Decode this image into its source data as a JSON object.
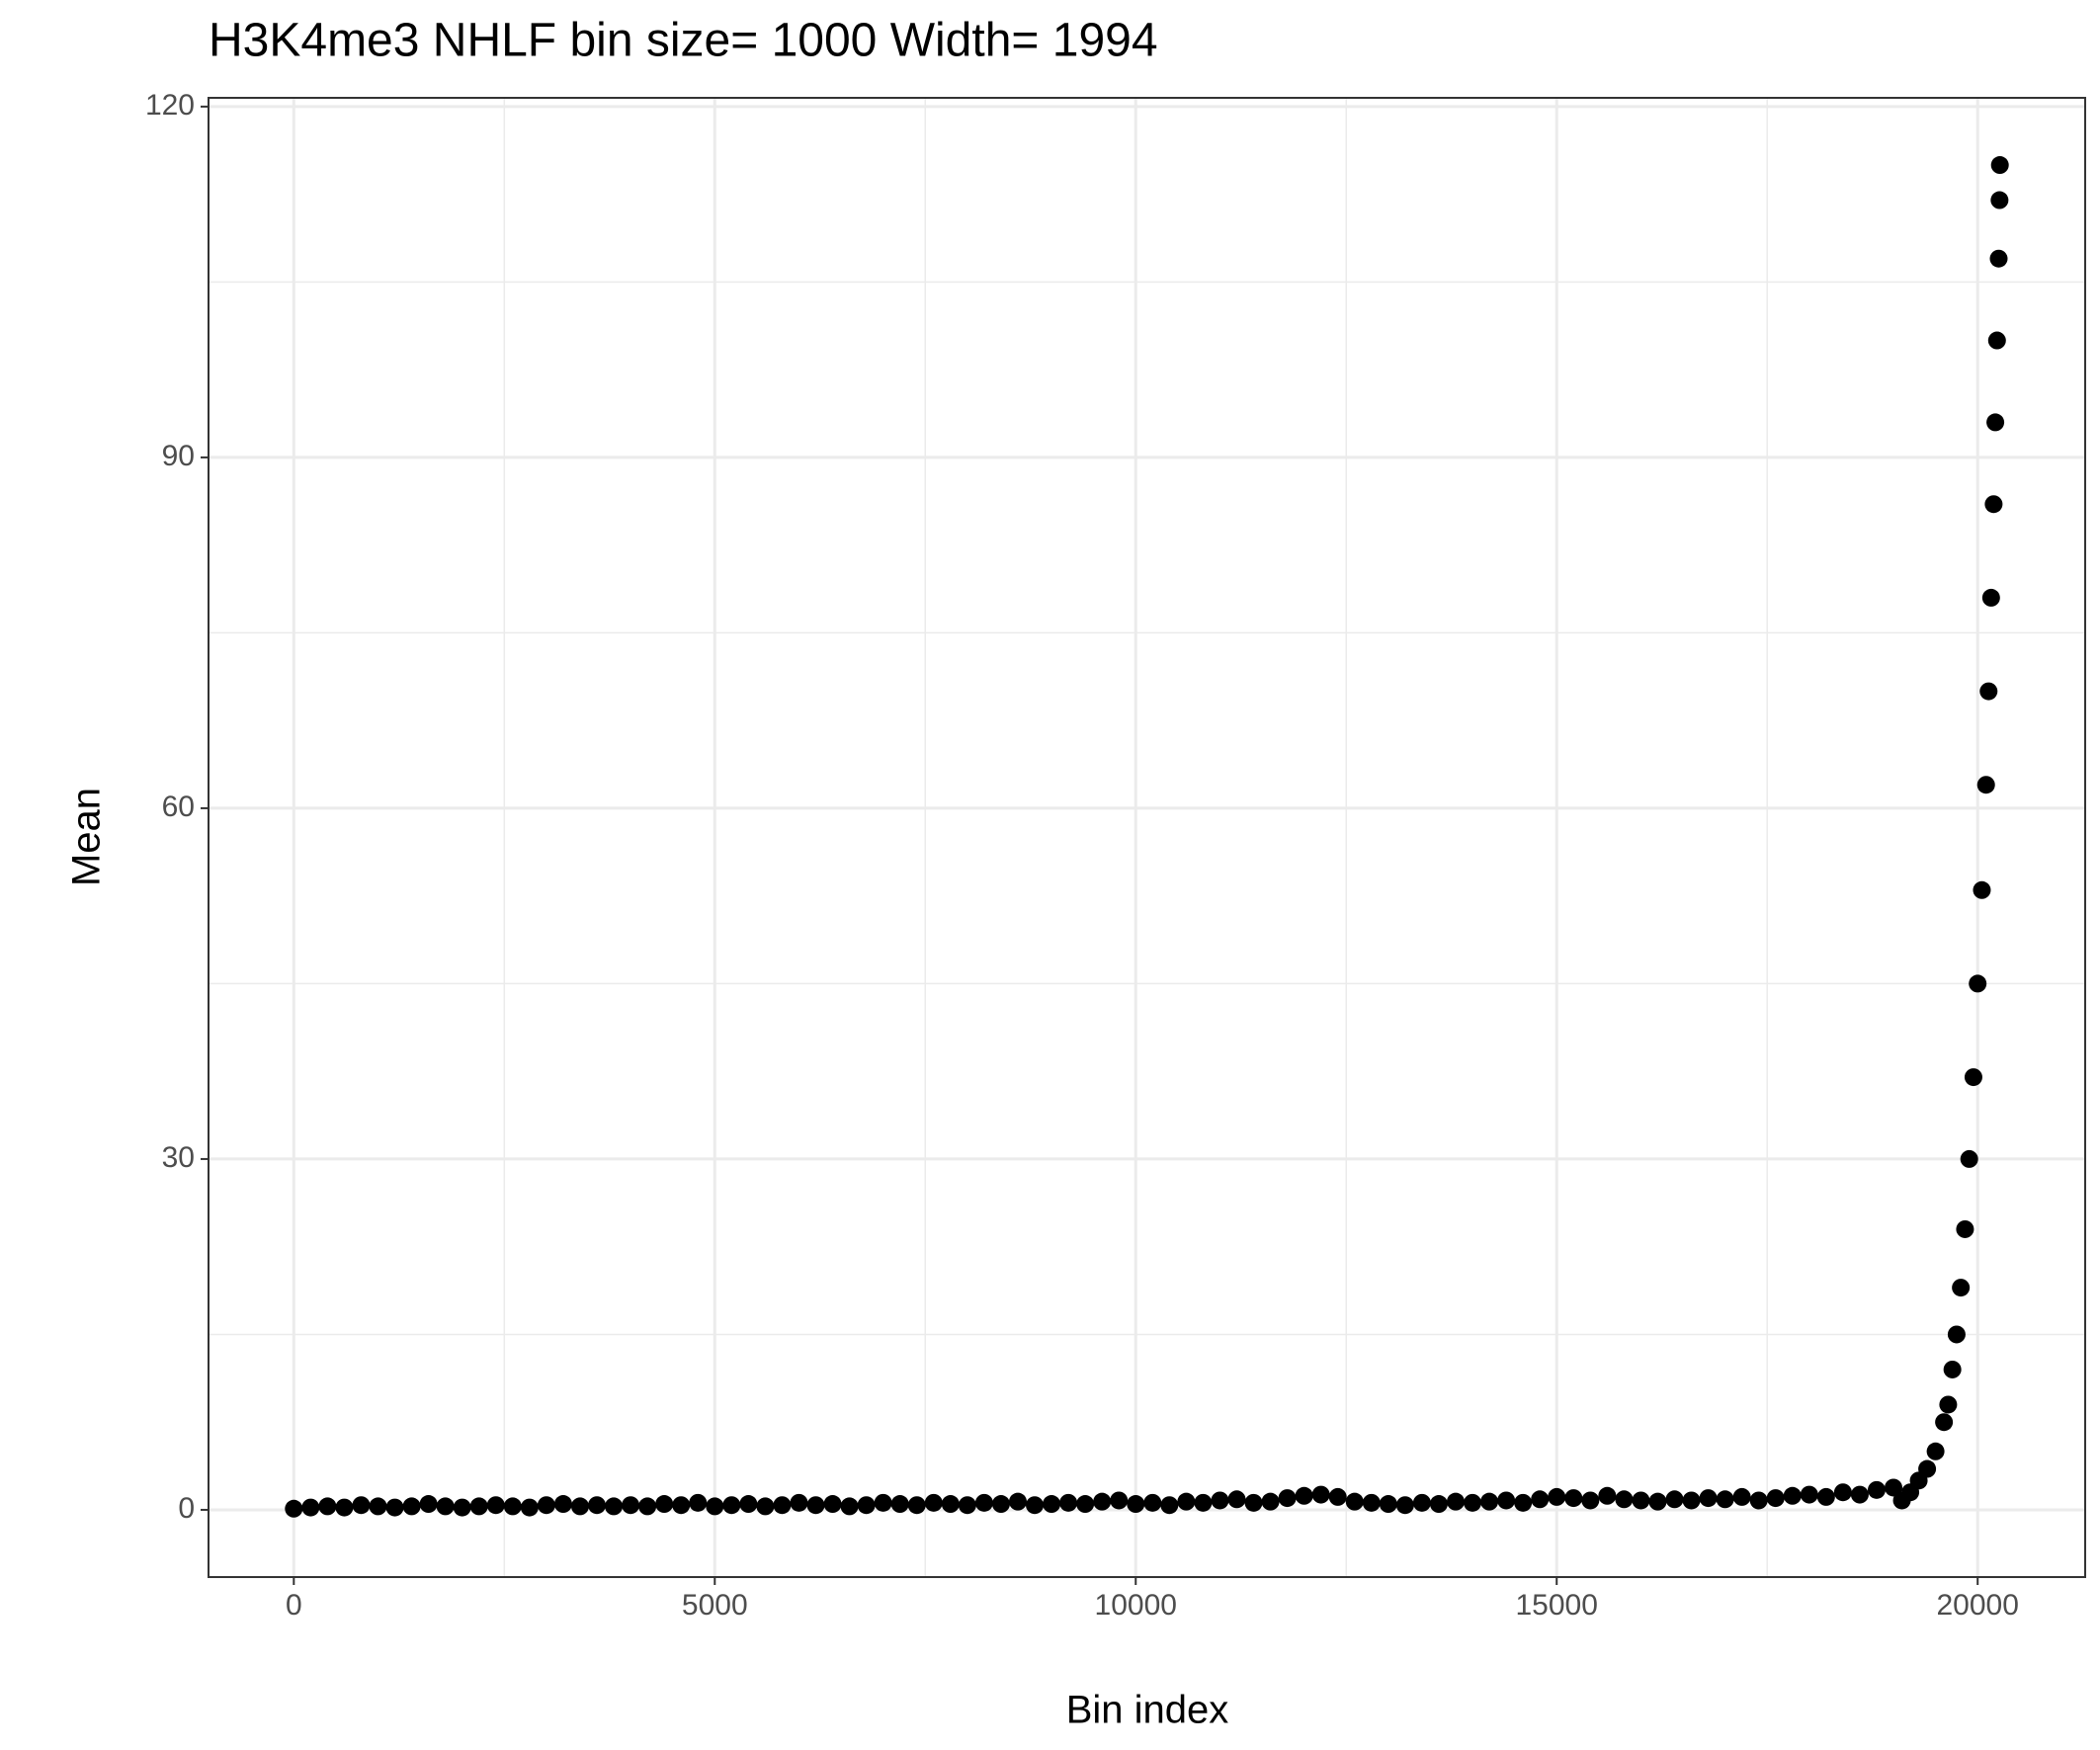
{
  "chart_data": {
    "type": "scatter",
    "title": "H3K4me3 NHLF  bin size=  1000  Width=  1994",
    "x_label": "Bin index",
    "y_label": "Mean",
    "color": "#000000",
    "grid": true,
    "xlim": [
      -1013,
      21277
    ],
    "ylim": [
      -5.75,
      120.75
    ],
    "xticks": [
      0,
      5000,
      10000,
      15000,
      20000
    ],
    "yticks": [
      0,
      30,
      60,
      90,
      120
    ],
    "x_minor_grid": [
      2500,
      7500,
      12500,
      17500
    ],
    "y_minor_grid": [
      15,
      45,
      75,
      105
    ],
    "x": [
      0,
      200,
      400,
      600,
      800,
      1000,
      1200,
      1400,
      1600,
      1800,
      2000,
      2200,
      2400,
      2600,
      2800,
      3000,
      3200,
      3400,
      3600,
      3800,
      4000,
      4200,
      4400,
      4600,
      4800,
      5000,
      5200,
      5400,
      5600,
      5800,
      6000,
      6200,
      6400,
      6600,
      6800,
      7000,
      7200,
      7400,
      7600,
      7800,
      8000,
      8200,
      8400,
      8600,
      8800,
      9000,
      9200,
      9400,
      9600,
      9800,
      10000,
      10200,
      10400,
      10600,
      10800,
      11000,
      11200,
      11400,
      11600,
      11800,
      12000,
      12200,
      12400,
      12600,
      12800,
      13000,
      13200,
      13400,
      13600,
      13800,
      14000,
      14200,
      14400,
      14600,
      14800,
      15000,
      15200,
      15400,
      15600,
      15800,
      16000,
      16200,
      16400,
      16600,
      16800,
      17000,
      17200,
      17400,
      17600,
      17800,
      18000,
      18200,
      18400,
      18600,
      18800,
      19000,
      19100,
      19200,
      19300,
      19400,
      19500,
      19600,
      19650,
      19700,
      19750,
      19800,
      19850,
      19900,
      19950,
      20000,
      20050,
      20100,
      20130,
      20160,
      20190,
      20210,
      20230,
      20250,
      20260,
      20264
    ],
    "values": [
      0.1,
      0.2,
      0.3,
      0.2,
      0.4,
      0.3,
      0.2,
      0.3,
      0.5,
      0.3,
      0.2,
      0.3,
      0.4,
      0.3,
      0.2,
      0.4,
      0.5,
      0.3,
      0.4,
      0.3,
      0.4,
      0.3,
      0.5,
      0.4,
      0.6,
      0.3,
      0.4,
      0.5,
      0.3,
      0.4,
      0.6,
      0.4,
      0.5,
      0.3,
      0.4,
      0.6,
      0.5,
      0.4,
      0.6,
      0.5,
      0.4,
      0.6,
      0.5,
      0.7,
      0.4,
      0.5,
      0.6,
      0.5,
      0.7,
      0.8,
      0.5,
      0.6,
      0.4,
      0.7,
      0.6,
      0.8,
      0.9,
      0.6,
      0.7,
      1.0,
      1.2,
      1.3,
      1.1,
      0.7,
      0.6,
      0.5,
      0.4,
      0.6,
      0.5,
      0.7,
      0.6,
      0.7,
      0.8,
      0.6,
      0.9,
      1.1,
      1.0,
      0.8,
      1.2,
      0.9,
      0.8,
      0.7,
      0.9,
      0.8,
      1.0,
      0.9,
      1.1,
      0.8,
      1.0,
      1.2,
      1.3,
      1.1,
      1.5,
      1.3,
      1.7,
      1.9,
      0.8,
      1.5,
      2.5,
      3.5,
      5,
      7.5,
      9,
      12,
      15,
      19,
      24,
      30,
      37,
      45,
      53,
      62,
      70,
      78,
      86,
      93,
      100,
      107,
      112,
      115
    ]
  }
}
